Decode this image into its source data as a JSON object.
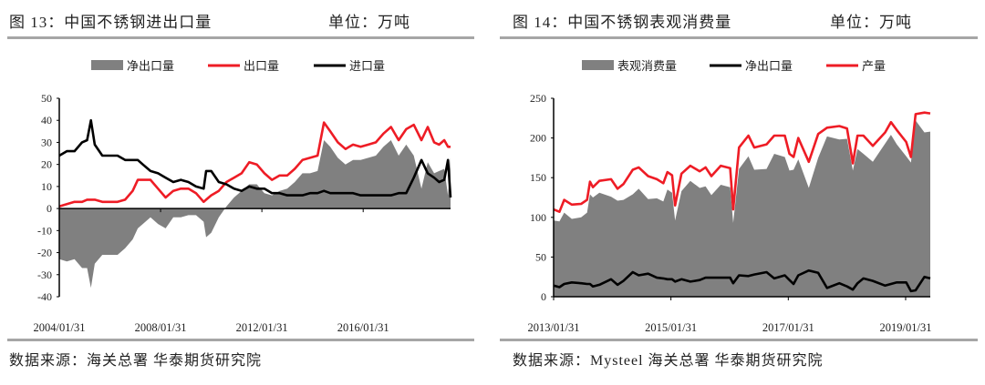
{
  "left_panel": {
    "title": "图 13：中国不锈钢进出口量",
    "unit": "单位：万吨",
    "source": "数据来源：海关总署 华泰期货研究院"
  },
  "right_panel": {
    "title": "图 14：中国不锈钢表观消费量",
    "unit": "单位：万吨",
    "source": "数据来源：Mysteel 海关总署 华泰期货研究院"
  },
  "colors": {
    "gray": "#808080",
    "red": "#ee1c25",
    "black": "#000000",
    "rule": "#a6a6a6"
  },
  "chart_data": [
    {
      "type": "line",
      "title": "中国不锈钢进出口量",
      "ylabel": "万吨",
      "ylim": [
        -40,
        50
      ],
      "yticks": [
        "50",
        "40",
        "30",
        "20",
        "10",
        "0",
        "-10",
        "-20",
        "-30",
        "-40"
      ],
      "ytick_values": [
        50,
        40,
        30,
        20,
        10,
        0,
        -10,
        -20,
        -30,
        -40
      ],
      "xlim": [
        2004.0,
        2019.45
      ],
      "xticks": [
        "2004/01/31",
        "2008/01/31",
        "2012/01/31",
        "2016/01/31"
      ],
      "xtick_values": [
        2004.0,
        2008.0,
        2012.0,
        2016.0
      ],
      "legend": [
        "净出口量",
        "出口量",
        "进口量"
      ],
      "legend_position": "top",
      "x": [
        2004.0,
        2004.3,
        2004.6,
        2004.9,
        2005.1,
        2005.25,
        2005.4,
        2005.7,
        2006.0,
        2006.3,
        2006.6,
        2006.9,
        2007.1,
        2007.3,
        2007.6,
        2007.9,
        2008.2,
        2008.5,
        2008.8,
        2009.1,
        2009.4,
        2009.7,
        2009.8,
        2010.0,
        2010.3,
        2010.6,
        2010.9,
        2011.2,
        2011.5,
        2011.8,
        2012.1,
        2012.4,
        2012.7,
        2013.0,
        2013.3,
        2013.6,
        2013.9,
        2014.2,
        2014.45,
        2014.7,
        2015.0,
        2015.3,
        2015.6,
        2015.9,
        2016.2,
        2016.5,
        2016.8,
        2017.1,
        2017.4,
        2017.7,
        2018.0,
        2018.3,
        2018.55,
        2018.8,
        2019.0,
        2019.2,
        2019.35,
        2019.45
      ],
      "series": [
        {
          "name": "出口量",
          "values": [
            1,
            2,
            3,
            3,
            4,
            4,
            4,
            3,
            3,
            3,
            4,
            8,
            13,
            13,
            13,
            9,
            5,
            8,
            9,
            9,
            7,
            3,
            4,
            6,
            8,
            12,
            14,
            16,
            21,
            20,
            16,
            13,
            15,
            15,
            18,
            22,
            23,
            24,
            39,
            35,
            30,
            27,
            29,
            28,
            29,
            30,
            34,
            37,
            31,
            36,
            38,
            31,
            37,
            30,
            29,
            31,
            28,
            28
          ]
        },
        {
          "name": "进口量",
          "values": [
            24,
            26,
            26,
            30,
            31,
            40,
            29,
            24,
            24,
            24,
            22,
            22,
            22,
            20,
            17,
            16,
            14,
            12,
            13,
            12,
            10,
            9,
            17,
            17,
            12,
            11,
            9,
            8,
            10,
            9,
            9,
            7,
            7,
            6,
            6,
            6,
            7,
            7,
            8,
            7,
            7,
            7,
            7,
            6,
            6,
            6,
            6,
            6,
            7,
            7,
            14,
            22,
            16,
            14,
            12,
            13,
            22,
            5
          ]
        },
        {
          "name": "净出口量",
          "derived": "出口量 - 进口量"
        }
      ]
    },
    {
      "type": "area",
      "title": "中国不锈钢表观消费量",
      "ylabel": "万吨",
      "ylim": [
        0,
        250
      ],
      "yticks": [
        "250",
        "200",
        "150",
        "100",
        "50",
        "0"
      ],
      "ytick_values": [
        250,
        200,
        150,
        100,
        50,
        0
      ],
      "xlim": [
        2013.0,
        2019.42
      ],
      "xticks": [
        "2013/01/31",
        "2015/01/31",
        "2017/01/31",
        "2019/01/31"
      ],
      "xtick_values": [
        2013.0,
        2015.0,
        2017.0,
        2019.0
      ],
      "legend": [
        "表观消费量",
        "净出口量",
        "产量"
      ],
      "legend_position": "top",
      "x": [
        2013.0,
        2013.1,
        2013.18,
        2013.31,
        2013.47,
        2013.57,
        2013.62,
        2013.67,
        2013.78,
        2013.98,
        2014.09,
        2014.19,
        2014.35,
        2014.45,
        2014.61,
        2014.76,
        2014.87,
        2014.94,
        2015.02,
        2015.07,
        2015.18,
        2015.33,
        2015.49,
        2015.59,
        2015.69,
        2015.85,
        2016.01,
        2016.06,
        2016.16,
        2016.32,
        2016.42,
        2016.63,
        2016.76,
        2016.94,
        2017.02,
        2017.09,
        2017.17,
        2017.35,
        2017.51,
        2017.66,
        2017.87,
        2018.0,
        2018.1,
        2018.18,
        2018.28,
        2018.44,
        2018.65,
        2018.75,
        2018.85,
        2019.01,
        2019.09,
        2019.17,
        2019.32,
        2019.42
      ],
      "series": [
        {
          "name": "产量",
          "values": [
            110,
            107,
            122,
            116,
            117,
            122,
            145,
            138,
            146,
            148,
            136,
            142,
            160,
            163,
            152,
            148,
            143,
            157,
            153,
            115,
            155,
            165,
            158,
            163,
            152,
            165,
            162,
            110,
            188,
            203,
            188,
            192,
            203,
            203,
            180,
            176,
            200,
            170,
            205,
            213,
            215,
            212,
            168,
            203,
            203,
            190,
            207,
            220,
            210,
            195,
            176,
            230,
            232,
            231
          ]
        },
        {
          "name": "净出口量",
          "values": [
            14,
            12,
            16,
            18,
            17,
            16,
            16,
            13,
            15,
            22,
            15,
            20,
            31,
            27,
            29,
            24,
            23,
            22,
            22,
            19,
            22,
            19,
            21,
            24,
            24,
            24,
            24,
            17,
            27,
            26,
            28,
            31,
            23,
            27,
            21,
            16,
            27,
            33,
            30,
            11,
            17,
            13,
            9,
            17,
            23,
            20,
            14,
            16,
            18,
            18,
            7,
            8,
            25,
            23
          ]
        },
        {
          "name": "表观消费量",
          "derived": "产量 - 净出口量"
        }
      ]
    }
  ]
}
